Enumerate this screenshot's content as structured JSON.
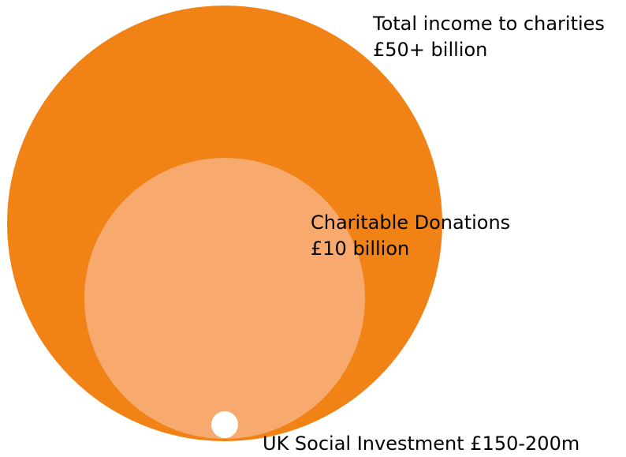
{
  "diagram": {
    "type": "nested-circles",
    "circles": [
      {
        "id": "total-income",
        "label_line1": "Total income to charities",
        "label_line2": "£50+ billion",
        "fill": "#F08216"
      },
      {
        "id": "charitable-donations",
        "label_line1": "Charitable Donations",
        "label_line2": "£10 billion",
        "fill": "#F8AA6E"
      },
      {
        "id": "uk-social-investment",
        "label": "UK Social Investment £150-200m",
        "fill": "#FFFFFF"
      }
    ]
  }
}
